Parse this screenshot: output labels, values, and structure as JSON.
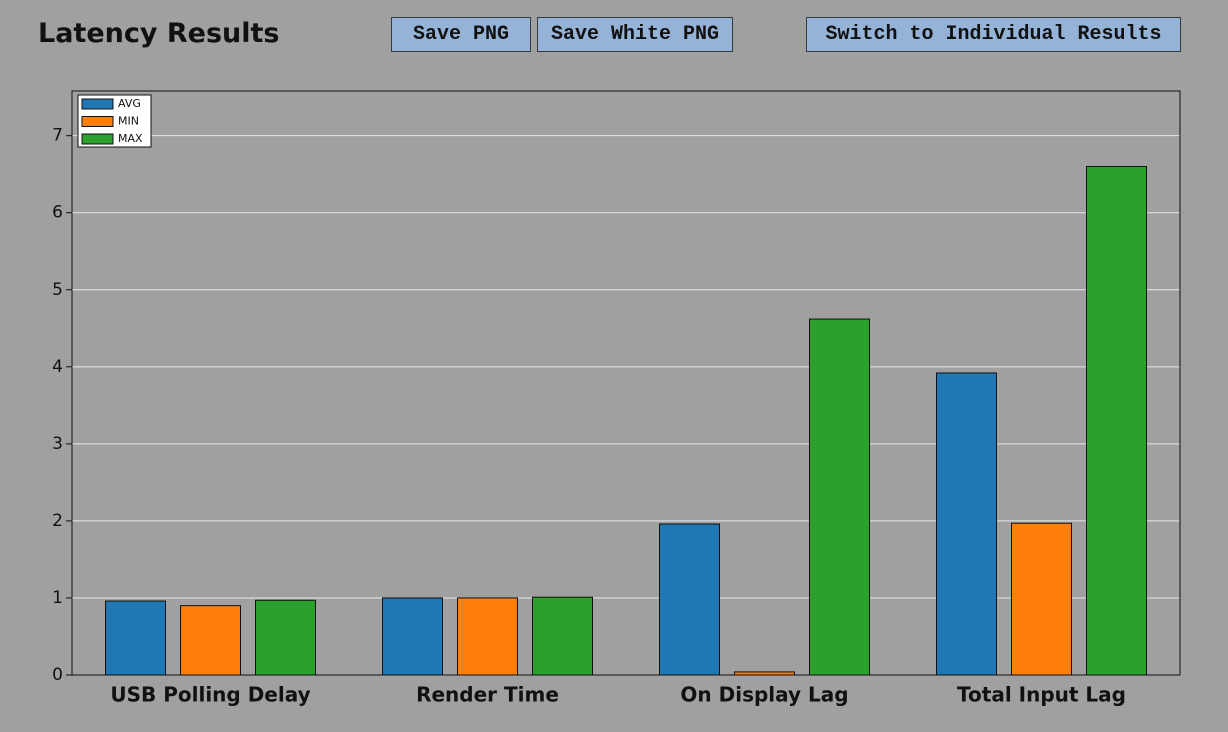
{
  "header": {
    "title": "Latency Results",
    "buttons": [
      "Save PNG",
      "Save White PNG",
      "Switch to Individual Results"
    ]
  },
  "chart_data": {
    "type": "bar",
    "categories": [
      "USB Polling Delay",
      "Render Time",
      "On Display Lag",
      "Total Input Lag"
    ],
    "series": [
      {
        "name": "AVG",
        "color": "#1f77b4",
        "values": [
          0.96,
          1.0,
          1.96,
          3.92
        ]
      },
      {
        "name": "MIN",
        "color": "#ff7f0e",
        "values": [
          0.9,
          1.0,
          0.04,
          1.97
        ]
      },
      {
        "name": "MAX",
        "color": "#2ca02c",
        "values": [
          0.97,
          1.01,
          4.62,
          6.6
        ]
      }
    ],
    "ylim": [
      0,
      7.58
    ],
    "yticks": [
      0,
      1,
      2,
      3,
      4,
      5,
      6,
      7
    ],
    "grid": true,
    "legend": "top-left"
  }
}
